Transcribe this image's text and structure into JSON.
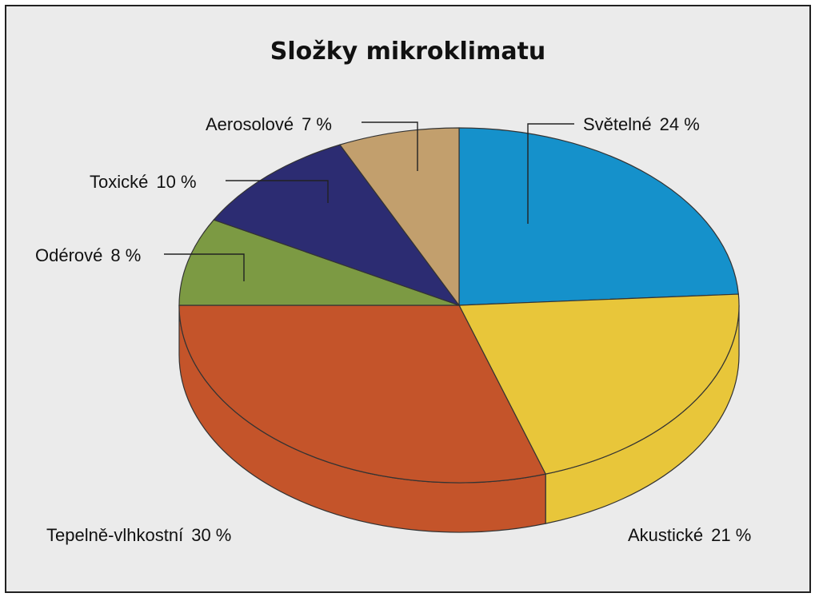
{
  "chart_data": {
    "type": "pie",
    "title": "Složky mikroklimatu",
    "slices": [
      {
        "label": "Světelné",
        "pct_label": "24 %",
        "value": 24,
        "color": "#1591cb"
      },
      {
        "label": "Akustické",
        "pct_label": "21 %",
        "value": 21,
        "color": "#e8c63a"
      },
      {
        "label": "Tepelně-vlhkostní",
        "pct_label": "30 %",
        "value": 30,
        "color": "#c4542a"
      },
      {
        "label": "Odérové",
        "pct_label": "8 %",
        "value": 8,
        "color": "#7c9a43"
      },
      {
        "label": "Toxické",
        "pct_label": "10 %",
        "value": 10,
        "color": "#2c2c72"
      },
      {
        "label": "Aerosolové",
        "pct_label": "7 %",
        "value": 7,
        "color": "#c29f6d"
      }
    ],
    "style": "3d-perspective"
  }
}
